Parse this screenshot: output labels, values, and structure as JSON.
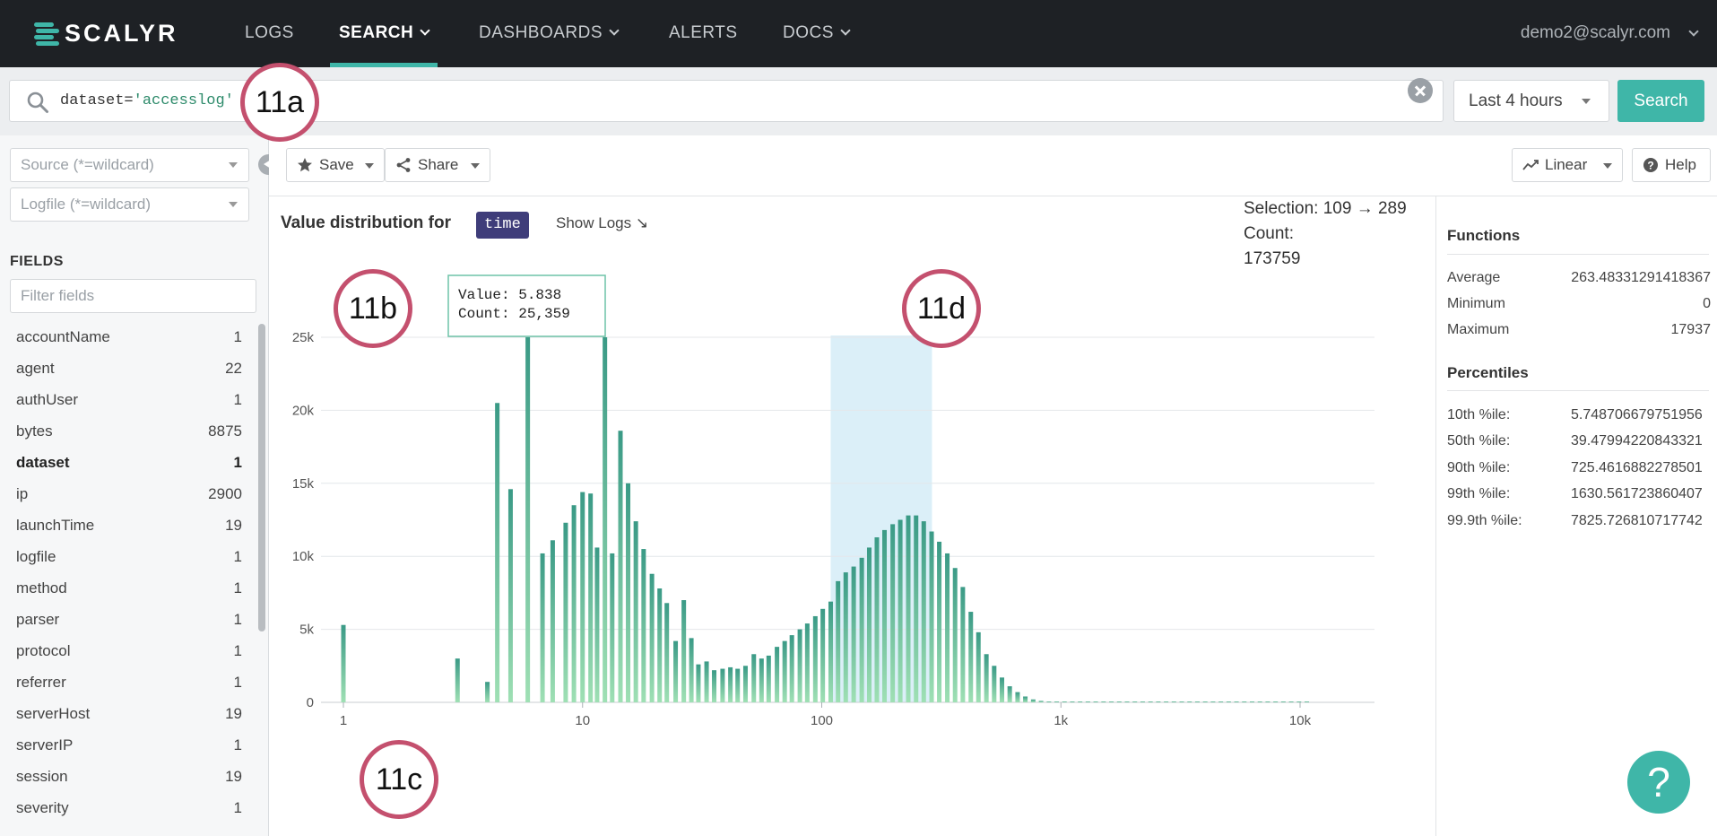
{
  "nav": {
    "logo": "SCALYR",
    "items": [
      {
        "label": "LOGS",
        "dropdown": false,
        "active": false
      },
      {
        "label": "SEARCH",
        "dropdown": true,
        "active": true
      },
      {
        "label": "DASHBOARDS",
        "dropdown": true,
        "active": false
      },
      {
        "label": "ALERTS",
        "dropdown": false,
        "active": false
      },
      {
        "label": "DOCS",
        "dropdown": true,
        "active": false
      }
    ],
    "user": "demo2@scalyr.com"
  },
  "search": {
    "query_key": "dataset=",
    "query_value": "'accesslog'",
    "time_range": "Last 4 hours",
    "button": "Search"
  },
  "sidebar": {
    "source_placeholder": "Source (*=wildcard)",
    "logfile_placeholder": "Logfile (*=wildcard)",
    "fields_title": "FIELDS",
    "filter_placeholder": "Filter fields",
    "fields": [
      {
        "name": "accountName",
        "count": "1"
      },
      {
        "name": "agent",
        "count": "22"
      },
      {
        "name": "authUser",
        "count": "1"
      },
      {
        "name": "bytes",
        "count": "8875"
      },
      {
        "name": "dataset",
        "count": "1",
        "bold": true
      },
      {
        "name": "ip",
        "count": "2900"
      },
      {
        "name": "launchTime",
        "count": "19"
      },
      {
        "name": "logfile",
        "count": "1"
      },
      {
        "name": "method",
        "count": "1"
      },
      {
        "name": "parser",
        "count": "1"
      },
      {
        "name": "protocol",
        "count": "1"
      },
      {
        "name": "referrer",
        "count": "1"
      },
      {
        "name": "serverHost",
        "count": "19"
      },
      {
        "name": "serverIP",
        "count": "1"
      },
      {
        "name": "session",
        "count": "19"
      },
      {
        "name": "severity",
        "count": "1"
      }
    ]
  },
  "toolbar": {
    "save": "Save",
    "share": "Share",
    "scale": "Linear",
    "help": "Help"
  },
  "chart_header": {
    "title": "Value distribution for",
    "field": "time",
    "show_logs": "Show Logs ↘",
    "selection": "Selection: 109 → 289",
    "count_label": "Count:",
    "count_value": "173759"
  },
  "tooltip": {
    "value_line": "Value: 5.838",
    "count_line": "Count: 25,359"
  },
  "functions": {
    "title": "Functions",
    "rows": [
      {
        "label": "Average",
        "value": "263.48331291418367"
      },
      {
        "label": "Minimum",
        "value": "0"
      },
      {
        "label": "Maximum",
        "value": "17937"
      }
    ]
  },
  "percentiles": {
    "title": "Percentiles",
    "rows": [
      {
        "label": "10th %ile:",
        "value": "5.748706679751956"
      },
      {
        "label": "50th %ile:",
        "value": "39.47994220843321"
      },
      {
        "label": "90th %ile:",
        "value": "725.4616882278501"
      },
      {
        "label": "99th %ile:",
        "value": "1630.561723860407"
      },
      {
        "label": "99.9th %ile:",
        "value": "7825.726810717742"
      }
    ]
  },
  "annotations": [
    "11a",
    "11b",
    "11c",
    "11d"
  ],
  "help_fab": "?",
  "colors": {
    "accent": "#3fb6a8",
    "nav_bg": "#1e2125",
    "bar_top": "#3a9a86",
    "bar_bottom": "#9fe0b4",
    "selection": "#dbeff8",
    "tag_bg": "#3f3d7a",
    "annotation": "#c4506e"
  },
  "chart_data": {
    "type": "bar",
    "x_scale": "log",
    "x_ticks": [
      "1",
      "10",
      "100",
      "1k",
      "10k"
    ],
    "x_tick_values": [
      1,
      10,
      100,
      1000,
      10000
    ],
    "y_ticks": [
      "0",
      "5k",
      "10k",
      "15k",
      "20k",
      "25k"
    ],
    "y_tick_values": [
      0,
      5000,
      10000,
      15000,
      20000,
      25000
    ],
    "ylim": [
      0,
      25000
    ],
    "selection_range": [
      109,
      289
    ],
    "grid": true,
    "x": [
      1,
      2,
      3,
      4,
      4.4,
      5,
      5.9,
      6.8,
      7.5,
      8.5,
      9.2,
      10,
      10.8,
      11.5,
      12.4,
      13.3,
      14.4,
      15.5,
      16.7,
      18,
      19.5,
      21,
      22.5,
      24.5,
      26.5,
      28.5,
      30.5,
      33,
      35.5,
      38.5,
      41.5,
      44.5,
      48,
      52,
      56,
      60,
      65,
      70,
      75,
      81,
      87,
      94,
      101,
      109,
      117,
      126,
      136,
      147,
      158,
      170,
      183,
      198,
      213,
      230,
      248,
      267,
      288,
      310,
      335,
      361,
      389,
      420,
      452,
      488,
      526,
      567,
      611,
      659,
      710,
      766,
      826,
      891,
      960,
      1035,
      1116,
      1203,
      1297,
      1398,
      1508,
      1626,
      1753,
      1890,
      2038,
      2197,
      2369,
      2554,
      2754,
      2969,
      3201,
      3451,
      3721,
      4012,
      4325,
      4663,
      5028,
      5421,
      5844,
      6301,
      6793,
      7324,
      7897,
      8514,
      9180,
      9897,
      10671
    ],
    "y": [
      5300,
      0,
      3000,
      1400,
      20500,
      14600,
      25000,
      10200,
      11100,
      12300,
      13500,
      14400,
      14300,
      10600,
      25000,
      10200,
      18600,
      15000,
      12400,
      10500,
      8800,
      7800,
      6800,
      4200,
      7000,
      4400,
      2600,
      2800,
      2200,
      2300,
      2400,
      2300,
      2500,
      3300,
      3000,
      3200,
      3800,
      4200,
      4600,
      5000,
      5400,
      5900,
      6400,
      6900,
      8300,
      8900,
      9300,
      9900,
      10600,
      11300,
      11800,
      12200,
      12500,
      12800,
      12800,
      12400,
      11700,
      11000,
      10200,
      9200,
      7900,
      6200,
      4800,
      3300,
      2500,
      1700,
      1100,
      700,
      400,
      200,
      100,
      60,
      40,
      30,
      30,
      30,
      30,
      30,
      30,
      30,
      30,
      30,
      30,
      30,
      30,
      30,
      30,
      30,
      30,
      30,
      30,
      30,
      30,
      30,
      30,
      30,
      30,
      30,
      30,
      30,
      30,
      30,
      30,
      30,
      30
    ],
    "tooltip_point": {
      "x": 5.838,
      "y": 25359
    }
  }
}
